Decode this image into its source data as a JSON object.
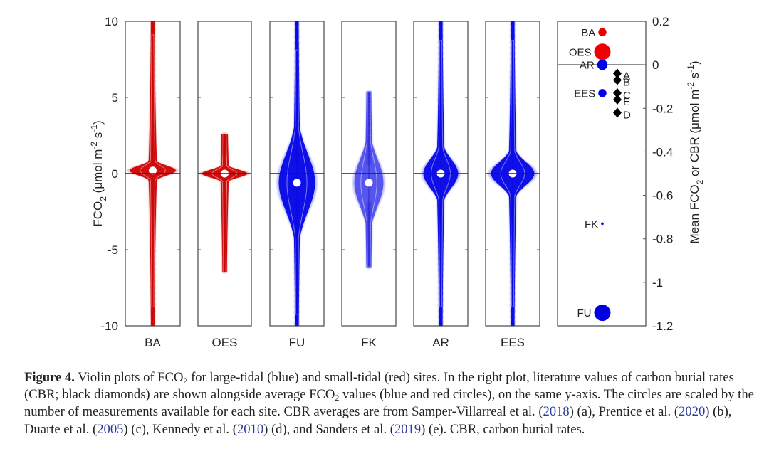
{
  "chart_data": [
    {
      "type": "violin",
      "ylabel": "FCO2 (μmol m-2 s-1)",
      "ylabel_parts": {
        "main": "FCO",
        "sub": "2",
        "rest": " (μmol m",
        "sup1": "-2",
        "mid": " s",
        "sup2": "-1",
        "end": ")"
      },
      "ylim": [
        -10,
        10
      ],
      "yticks": [
        10,
        5,
        0,
        -5,
        -10
      ],
      "ytick_labels": [
        "10",
        "5",
        "0",
        "-5",
        "-10"
      ],
      "zero_line": true,
      "categories": [
        "BA",
        "OES",
        "FU",
        "FK",
        "AR",
        "EES"
      ],
      "series": [
        {
          "name": "BA",
          "group": "small-tidal",
          "color": "#cc0000",
          "median": 0.2,
          "min": -10,
          "max": 10,
          "core_halfwidth": 0.95,
          "spread": 0.55
        },
        {
          "name": "OES",
          "group": "small-tidal",
          "color": "#cc0000",
          "median": 0.0,
          "min": -6.5,
          "max": 2.6,
          "core_halfwidth": 0.95,
          "spread": 0.45
        },
        {
          "name": "FU",
          "group": "large-tidal",
          "color": "#0000e6",
          "median": -0.6,
          "min": -10,
          "max": 10,
          "core_halfwidth": 0.75,
          "spread": 3.2
        },
        {
          "name": "FK",
          "group": "large-tidal",
          "color": "#0000e6",
          "median": -0.6,
          "min": -6.2,
          "max": 5.4,
          "core_halfwidth": 0.6,
          "spread": 2.6
        },
        {
          "name": "AR",
          "group": "large-tidal",
          "color": "#0000e6",
          "median": 0.0,
          "min": -10,
          "max": 10,
          "core_halfwidth": 0.72,
          "spread": 1.6
        },
        {
          "name": "EES",
          "group": "large-tidal",
          "color": "#0000e6",
          "median": 0.0,
          "min": -10,
          "max": 10,
          "core_halfwidth": 0.9,
          "spread": 1.3
        }
      ]
    },
    {
      "type": "scatter",
      "ylabel": "Mean FCO2 or CBR (μmol m-2 s-1)",
      "ylabel_parts": {
        "main": "Mean FCO",
        "sub": "2",
        "rest": " or CBR (μmol m",
        "sup1": "-2",
        "mid": " s",
        "sup2": "-1",
        "end": ")"
      },
      "ylim": [
        -1.2,
        0.2
      ],
      "yticks": [
        0.2,
        0,
        -0.2,
        -0.4,
        -0.6,
        -0.8,
        -1,
        -1.2
      ],
      "ytick_labels": [
        "0.2",
        "0",
        "-0.2",
        "-0.4",
        "-0.6",
        "-0.8",
        "-1",
        "-1.2"
      ],
      "zero_line": true,
      "sites": [
        {
          "name": "BA",
          "value": 0.15,
          "color": "#ee0000",
          "relative_size": 0.45
        },
        {
          "name": "OES",
          "value": 0.06,
          "color": "#ee0000",
          "relative_size": 1.0
        },
        {
          "name": "AR",
          "value": 0.0,
          "color": "#0000e6",
          "relative_size": 0.6
        },
        {
          "name": "EES",
          "value": -0.13,
          "color": "#0000e6",
          "relative_size": 0.45
        },
        {
          "name": "FK",
          "value": -0.73,
          "color": "#0000e6",
          "relative_size": 0.08
        },
        {
          "name": "FU",
          "value": -1.14,
          "color": "#0000e6",
          "relative_size": 1.0
        }
      ],
      "cbr": [
        {
          "name": "A",
          "value": -0.04
        },
        {
          "name": "B",
          "value": -0.07
        },
        {
          "name": "C",
          "value": -0.13
        },
        {
          "name": "E",
          "value": -0.16
        },
        {
          "name": "D",
          "value": -0.22
        }
      ],
      "marker_color": "#000000"
    }
  ],
  "caption": {
    "label": "Figure 4.",
    "t1": " Violin plots of FCO",
    "sub1": "2",
    "t2": " for large-tidal (blue) and small-tidal (red) sites. In the right plot, literature values of carbon burial rates (CBR; black diamonds) are shown alongside average FCO",
    "sub2": "2",
    "t3": " values (blue and red circles), on the same y-axis. The circles are scaled by the number of measurements available for each site. CBR averages are from Samper-Villarreal et al. (",
    "r1": "2018",
    "t4": ") (a), Prentice et al. (",
    "r2": "2020",
    "t5": ") (b), Duarte et al. (",
    "r3": "2005",
    "t6": ") (c), Kennedy et al. (",
    "r4": "2010",
    "t7": ") (d), and Sanders et al. (",
    "r5": "2019",
    "t8": ") (e). CBR, carbon burial rates."
  }
}
